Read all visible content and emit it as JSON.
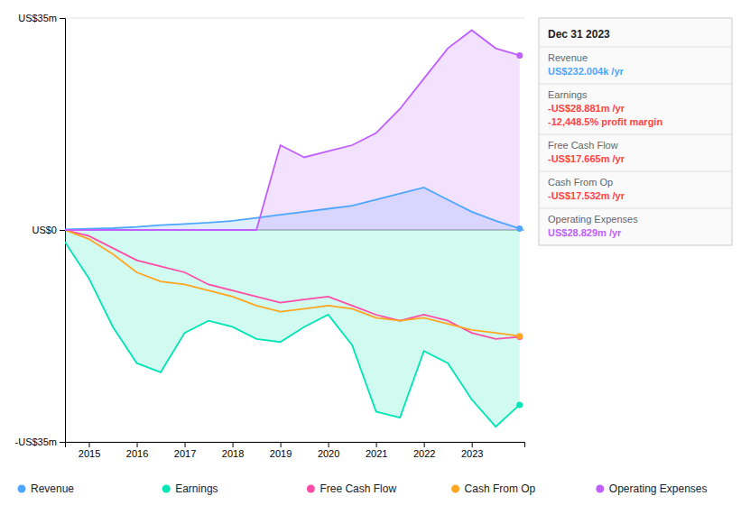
{
  "chart_data": {
    "type": "line",
    "x": [
      2014.5,
      2015.0,
      2015.5,
      2016.0,
      2016.5,
      2017.0,
      2017.5,
      2018.0,
      2018.5,
      2019.0,
      2019.5,
      2020.0,
      2020.5,
      2021.0,
      2021.5,
      2022.0,
      2022.5,
      2023.0,
      2023.5,
      2024.0
    ],
    "series": [
      {
        "name": "Revenue",
        "type": "area",
        "color": "#4da6ff",
        "values": [
          0.1,
          0.2,
          0.3,
          0.5,
          0.8,
          1.0,
          1.2,
          1.5,
          2.0,
          2.5,
          3.0,
          3.5,
          4.0,
          5.0,
          6.0,
          7.0,
          5.0,
          3.0,
          1.5,
          0.232
        ]
      },
      {
        "name": "Earnings",
        "type": "area",
        "color": "#00e5b4",
        "values": [
          -2.0,
          -8.0,
          -16.0,
          -22.0,
          -23.5,
          -17.0,
          -15.0,
          -16.0,
          -18.0,
          -18.5,
          -16.0,
          -14.0,
          -19.0,
          -30.0,
          -31.0,
          -20.0,
          -22.0,
          -28.0,
          -32.5,
          -28.881
        ]
      },
      {
        "name": "Free Cash Flow",
        "type": "line",
        "color": "#ff4da6",
        "values": [
          0.0,
          -1.0,
          -3.0,
          -5.0,
          -6.0,
          -7.0,
          -9.0,
          -10.0,
          -11.0,
          -12.0,
          -11.5,
          -11.0,
          -12.5,
          -14.0,
          -15.0,
          -14.0,
          -15.0,
          -17.0,
          -18.0,
          -17.665
        ]
      },
      {
        "name": "Cash From Op",
        "type": "line",
        "color": "#ffa520",
        "values": [
          0.0,
          -1.5,
          -4.0,
          -7.0,
          -8.5,
          -9.0,
          -10.0,
          -11.0,
          -12.5,
          -13.5,
          -13.0,
          -12.5,
          -13.0,
          -14.5,
          -15.0,
          -14.5,
          -15.5,
          -16.5,
          -17.0,
          -17.532
        ]
      },
      {
        "name": "Operating Expenses",
        "type": "area",
        "color": "#bf5fff",
        "values": [
          0.0,
          0.0,
          0.0,
          0.0,
          0.0,
          0.0,
          0.0,
          0.0,
          0.0,
          14.0,
          12.0,
          13.0,
          14.0,
          16.0,
          20.0,
          25.0,
          30.0,
          33.0,
          30.0,
          28.829
        ]
      }
    ],
    "xlim": [
      2014.5,
      2024.1
    ],
    "xticks": [
      2015,
      2016,
      2017,
      2018,
      2019,
      2020,
      2021,
      2022,
      2023
    ],
    "ylim": [
      -35,
      35
    ],
    "yticks": [
      {
        "value": -35,
        "label": "-US$35m"
      },
      {
        "value": 0,
        "label": "US$0"
      },
      {
        "value": 35,
        "label": "US$35m"
      }
    ],
    "grid": true,
    "legend": "bottom",
    "annotations": {
      "title": "Dec 31 2023",
      "rows": [
        {
          "label": "Revenue",
          "texts": [
            {
              "text": "US$232.004k /yr",
              "color": "#4da6ff"
            }
          ]
        },
        {
          "label": "Earnings",
          "texts": [
            {
              "text": "-US$28.881m /yr",
              "color": "#ff4444"
            },
            {
              "text": "-12,448.5% profit margin",
              "color": "#ff4444"
            }
          ]
        },
        {
          "label": "Free Cash Flow",
          "texts": [
            {
              "text": "-US$17.665m /yr",
              "color": "#ff4444"
            }
          ]
        },
        {
          "label": "Cash From Op",
          "texts": [
            {
              "text": "-US$17.532m /yr",
              "color": "#ff4444"
            }
          ]
        },
        {
          "label": "Operating Expenses",
          "texts": [
            {
              "text": "US$28.829m /yr",
              "color": "#bf5fff"
            }
          ]
        }
      ]
    }
  }
}
